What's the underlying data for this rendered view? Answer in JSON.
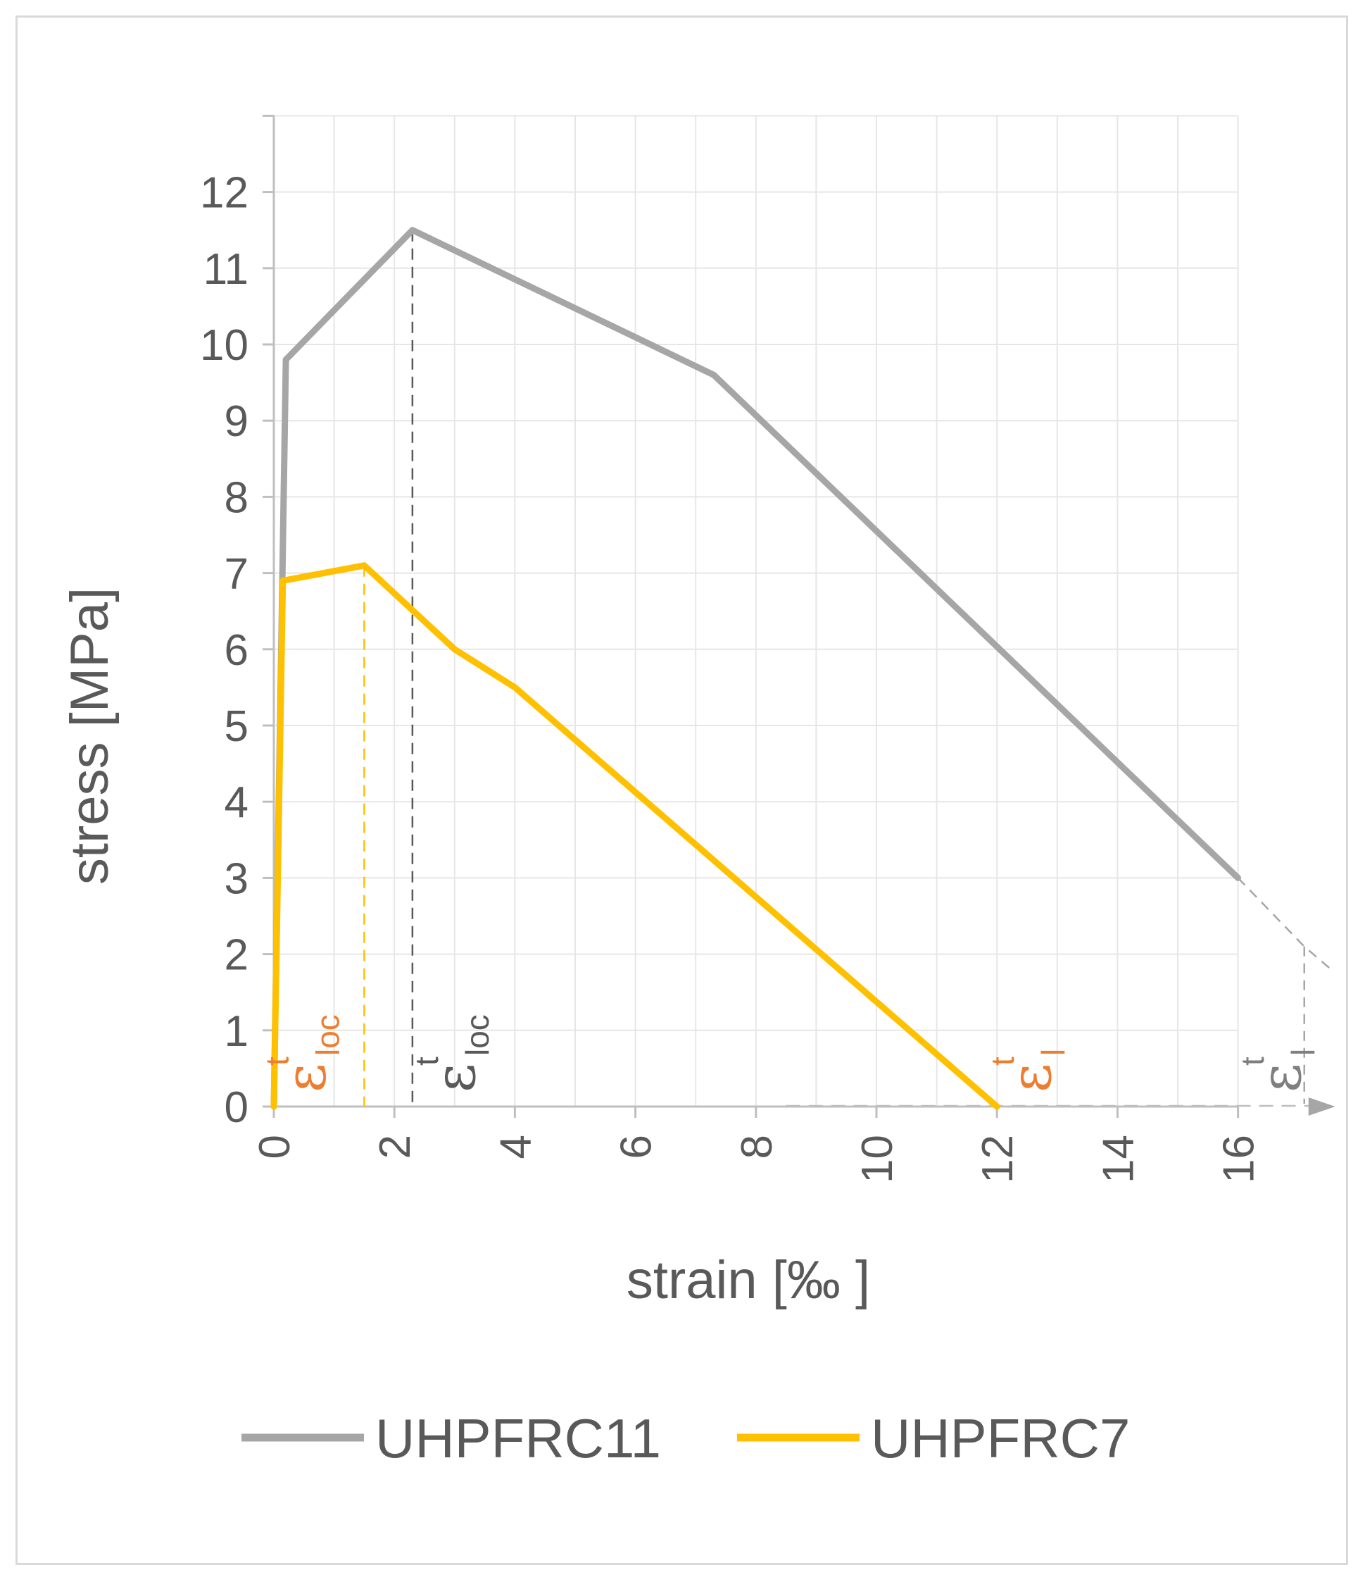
{
  "chart_data": {
    "type": "line",
    "xlabel": "strain [‰ ]",
    "ylabel": "stress [MPa]",
    "xlim": [
      0,
      16
    ],
    "ylim": [
      0,
      13
    ],
    "x_ticks": [
      0,
      2,
      4,
      6,
      8,
      10,
      12,
      14,
      16
    ],
    "y_ticks": [
      0,
      1,
      2,
      3,
      4,
      5,
      6,
      7,
      8,
      9,
      10,
      11,
      12
    ],
    "grid": true,
    "legend": "bottom",
    "series": [
      {
        "name": "UHPFRC11",
        "color": "#a6a6a6",
        "points": [
          [
            0,
            0
          ],
          [
            0.2,
            9.8
          ],
          [
            2.3,
            11.5
          ],
          [
            7.3,
            9.6
          ],
          [
            16,
            3.0
          ]
        ]
      },
      {
        "name": "UHPFRC7",
        "color": "#ffc000",
        "points": [
          [
            0,
            0
          ],
          [
            0.15,
            6.9
          ],
          [
            1.5,
            7.1
          ],
          [
            3.0,
            6.0
          ],
          [
            4.0,
            5.5
          ],
          [
            12.0,
            0
          ]
        ]
      }
    ],
    "annotations": [
      {
        "symbol": "ε",
        "sup": "t",
        "sub": "loc",
        "x": 1.5,
        "color": "#ed7d31",
        "guide_color": "#ffc000"
      },
      {
        "symbol": "ε",
        "sup": "t",
        "sub": "loc",
        "x": 2.3,
        "color": "#595959",
        "guide_color": "#595959"
      },
      {
        "symbol": "ε",
        "sup": "t",
        "sub": "l",
        "x": 12.0,
        "color": "#ed7d31"
      },
      {
        "symbol": "ε",
        "sup": "t",
        "sub": "l",
        "x": 17.1,
        "color": "#7f7f7f",
        "guide_color": "#a6a6a6"
      }
    ]
  }
}
